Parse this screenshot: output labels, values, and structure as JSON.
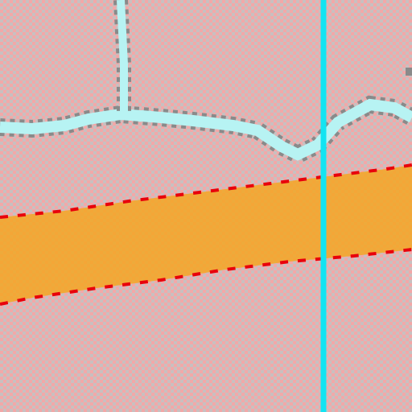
{
  "map": {
    "colors": {
      "background": "#f2a8a8",
      "checker": "#c8c0c0",
      "road_fill": "#f5a623",
      "road_border": "#e8000b",
      "waterway_fill": "#b7f3f3",
      "waterway_edge": "#8a8a8a",
      "boundary_line": "#12e4f2"
    },
    "features": [
      {
        "kind": "road",
        "style": "dashed-casing"
      },
      {
        "kind": "waterway",
        "style": "dotted-edge"
      },
      {
        "kind": "waterway-branch",
        "style": "dotted-edge"
      },
      {
        "kind": "boundary",
        "style": "solid"
      }
    ]
  }
}
